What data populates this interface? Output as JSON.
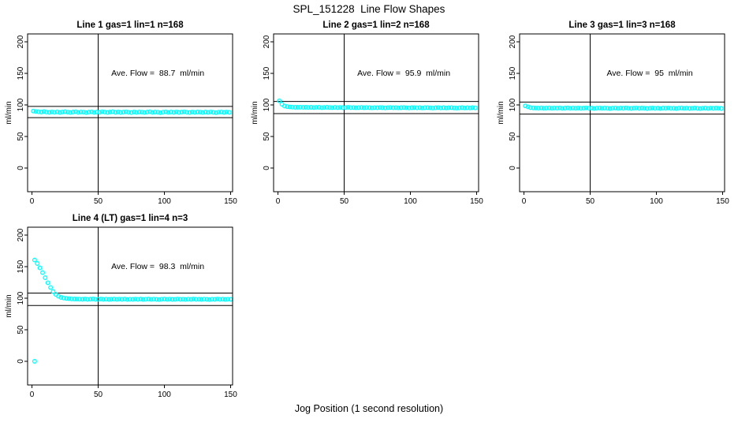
{
  "figure": {
    "title": "SPL_151228  Line Flow Shapes",
    "xlabel": "Jog Position (1 second resolution)"
  },
  "colors": {
    "points": "#00FFFF",
    "axis": "#000000",
    "background": "#FFFFFF"
  },
  "chart_data": [
    {
      "type": "scatter",
      "title": "Line 1 gas=1 lin=1 n=168",
      "annotation": "Ave. Flow =  88.7  ml/min",
      "ave_flow_ml_min": 88.7,
      "n": 168,
      "ylabel": "ml/min",
      "xticks": [
        0,
        50,
        100,
        150
      ],
      "yticks": [
        0,
        50,
        100,
        150,
        200
      ],
      "xlim": [
        0,
        150
      ],
      "ylim": [
        0,
        200
      ],
      "vline_x": 50,
      "hlines": [
        79.8,
        97.6
      ],
      "x_start": 1,
      "x_step": 2,
      "y_values": [
        90.3,
        89.6,
        89.1,
        88.8,
        89.4,
        88.6,
        88.2,
        88.9,
        88.4,
        89.0,
        88.1,
        88.7,
        89.2,
        88.5,
        88.0,
        88.8,
        89.1,
        88.3,
        88.9,
        88.5,
        87.9,
        88.6,
        89.0,
        88.2,
        88.8,
        88.4,
        89.1,
        88.6,
        88.0,
        88.7,
        89.2,
        88.3,
        88.8,
        88.1,
        88.6,
        89.0,
        88.4,
        87.9,
        88.7,
        88.2,
        88.9,
        88.5,
        88.0,
        88.6,
        89.1,
        88.3,
        88.8,
        88.4,
        87.8,
        88.5,
        89.0,
        88.2,
        88.7,
        88.3,
        88.9,
        88.1,
        88.6,
        89.0,
        88.4,
        87.9,
        88.6,
        88.2,
        88.8,
        88.5,
        88.0,
        88.7,
        88.3,
        88.9,
        88.2,
        87.8,
        88.5,
        88.9,
        88.1,
        88.6,
        88.3
      ],
      "extra_points": []
    },
    {
      "type": "scatter",
      "title": "Line 2 gas=1 lin=2 n=168",
      "annotation": "Ave. Flow =  95.9  ml/min",
      "ave_flow_ml_min": 95.9,
      "n": 168,
      "ylabel": "ml/min",
      "xticks": [
        0,
        50,
        100,
        150
      ],
      "yticks": [
        0,
        50,
        100,
        150,
        200
      ],
      "xlim": [
        0,
        150
      ],
      "ylim": [
        0,
        200
      ],
      "vline_x": 50,
      "hlines": [
        86.3,
        105.5
      ],
      "x_start": 1,
      "x_step": 2,
      "y_values": [
        106.5,
        101.0,
        98.3,
        97.2,
        96.8,
        96.5,
        96.3,
        96.2,
        96.4,
        96.1,
        96.3,
        96.0,
        96.2,
        95.9,
        96.1,
        96.3,
        95.8,
        96.0,
        96.2,
        95.9,
        95.7,
        96.1,
        95.8,
        96.0,
        95.6,
        95.9,
        96.1,
        95.7,
        95.9,
        95.5,
        95.8,
        96.0,
        95.6,
        95.9,
        95.7,
        95.4,
        95.8,
        95.5,
        95.9,
        95.6,
        95.3,
        95.7,
        95.9,
        95.5,
        95.8,
        95.4,
        95.6,
        95.9,
        95.5,
        95.2,
        95.6,
        95.8,
        95.4,
        95.7,
        95.3,
        95.6,
        95.8,
        95.4,
        95.1,
        95.5,
        95.7,
        95.3,
        95.6,
        95.2,
        95.5,
        95.7,
        95.3,
        95.0,
        95.4,
        95.6,
        95.2,
        95.5,
        95.3,
        95.6,
        95.2
      ],
      "extra_points": []
    },
    {
      "type": "scatter",
      "title": "Line 3 gas=1 lin=3 n=168",
      "annotation": "Ave. Flow =  95  ml/min",
      "ave_flow_ml_min": 95,
      "n": 168,
      "ylabel": "ml/min",
      "xticks": [
        0,
        50,
        100,
        150
      ],
      "yticks": [
        0,
        50,
        100,
        150,
        200
      ],
      "xlim": [
        0,
        150
      ],
      "ylim": [
        0,
        200
      ],
      "vline_x": 50,
      "hlines": [
        85.5,
        104.5
      ],
      "x_start": 1,
      "x_step": 2,
      "y_values": [
        98.5,
        97.0,
        95.8,
        95.3,
        95.1,
        94.9,
        95.2,
        94.8,
        95.0,
        95.3,
        94.7,
        95.1,
        94.9,
        95.2,
        94.6,
        95.0,
        95.2,
        94.8,
        95.1,
        94.7,
        95.0,
        94.6,
        94.9,
        95.2,
        94.8,
        95.0,
        94.5,
        94.9,
        95.1,
        94.7,
        95.0,
        94.8,
        94.4,
        94.9,
        95.1,
        94.6,
        95.0,
        94.7,
        95.2,
        94.8,
        94.5,
        94.9,
        95.1,
        94.6,
        95.0,
        94.7,
        94.4,
        94.8,
        95.0,
        94.6,
        94.9,
        94.5,
        95.0,
        94.7,
        95.1,
        94.6,
        94.8,
        94.4,
        94.9,
        95.1,
        94.6,
        94.9,
        94.5,
        94.8,
        95.0,
        94.6,
        94.3,
        94.8,
        95.0,
        94.5,
        94.9,
        94.6,
        95.0,
        94.7,
        94.4
      ],
      "extra_points": []
    },
    {
      "type": "scatter",
      "title": "Line 4 (LT) gas=1 lin=4 n=3",
      "annotation": "Ave. Flow =  98.3  ml/min",
      "ave_flow_ml_min": 98.3,
      "n": 3,
      "ylabel": "ml/min",
      "xticks": [
        0,
        50,
        100,
        150
      ],
      "yticks": [
        0,
        50,
        100,
        150,
        200
      ],
      "xlim": [
        0,
        150
      ],
      "ylim": [
        0,
        200
      ],
      "vline_x": 50,
      "hlines": [
        88.5,
        108.1
      ],
      "x_start": 2,
      "x_step": 2,
      "y_values": [
        160.5,
        155.0,
        148.0,
        140.5,
        132.5,
        124.5,
        117.0,
        110.5,
        106.0,
        103.0,
        101.2,
        100.2,
        99.6,
        99.2,
        98.9,
        98.7,
        98.6,
        98.5,
        98.4,
        98.6,
        98.3,
        98.5,
        98.7,
        98.2,
        98.4,
        98.6,
        98.3,
        98.5,
        98.1,
        98.4,
        98.6,
        98.2,
        98.5,
        98.3,
        98.6,
        98.0,
        98.4,
        98.2,
        98.5,
        98.3,
        98.6,
        98.1,
        98.4,
        98.6,
        98.2,
        98.5,
        98.3,
        97.9,
        98.4,
        98.6,
        98.2,
        98.5,
        98.1,
        98.3,
        98.6,
        98.2,
        98.4,
        98.0,
        98.5,
        98.3,
        98.6,
        98.2,
        98.4,
        98.1,
        98.5,
        98.3,
        97.9,
        98.4,
        98.2,
        98.6,
        98.3,
        98.5,
        98.1,
        98.4,
        98.2
      ],
      "extra_points": [
        [
          2,
          0
        ]
      ]
    }
  ]
}
